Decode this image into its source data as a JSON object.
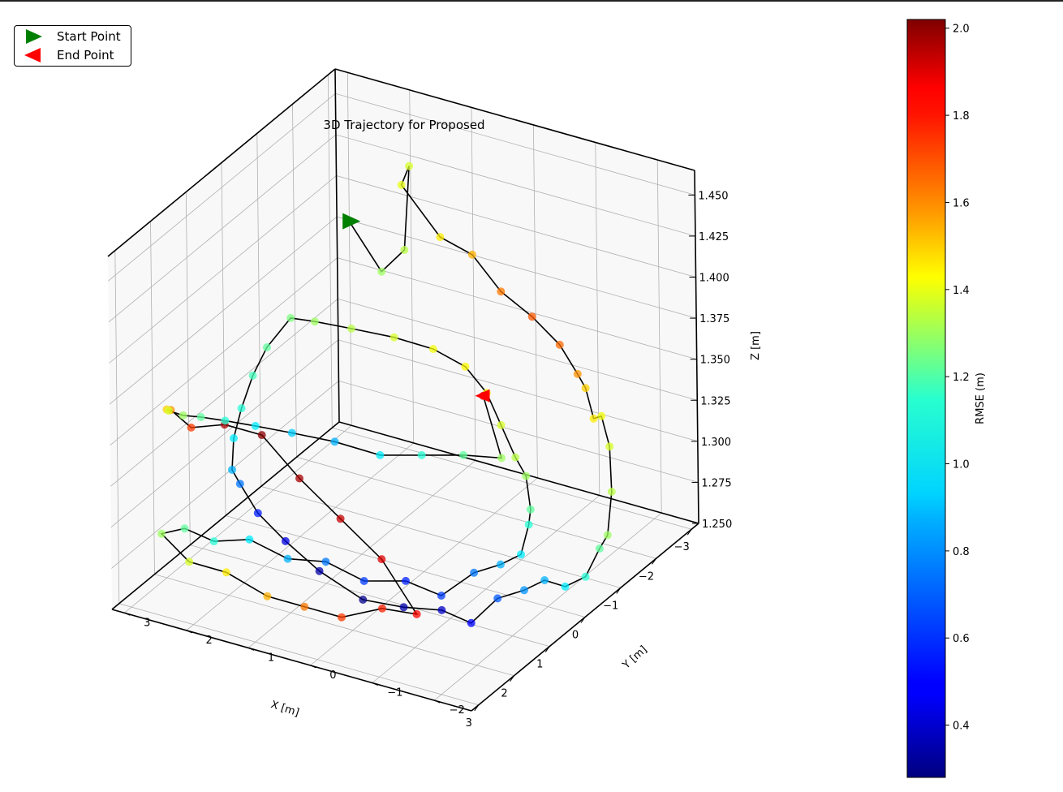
{
  "legend": {
    "start_label": "Start Point",
    "end_label": "End Point",
    "start_color": "#008000",
    "end_color": "#ff0000"
  },
  "chart_data": {
    "type": "scatter3d",
    "title": "3D Trajectory for Proposed",
    "xlabel": "X [m]",
    "ylabel": "Y [m]",
    "zlabel": "Z [m]",
    "xlim": [
      -3.2,
      3.2
    ],
    "ylim": [
      -2.6,
      3.2
    ],
    "zlim": [
      1.25,
      1.465
    ],
    "x_ticks": [
      -3,
      -2,
      -1,
      0,
      1,
      2,
      3
    ],
    "y_ticks": [
      -2,
      -1,
      0,
      1,
      2,
      3
    ],
    "z_ticks": [
      1.25,
      1.275,
      1.3,
      1.325,
      1.35,
      1.375,
      1.4,
      1.425,
      1.45
    ],
    "x_tick_labels": [
      "−3",
      "−2",
      "−1",
      "0",
      "1",
      "2",
      "3"
    ],
    "y_tick_labels": [
      "−2",
      "−1",
      "0",
      "1",
      "2",
      "3"
    ],
    "z_tick_labels": [
      "1.250",
      "1.275",
      "1.300",
      "1.325",
      "1.350",
      "1.375",
      "1.400",
      "1.425",
      "1.450"
    ],
    "grid": true,
    "legend_position": "top-left",
    "colorbar": {
      "label": "RMSE (m)",
      "colormap": "jet",
      "range": [
        0.28,
        2.02
      ],
      "ticks": [
        0.4,
        0.6,
        0.8,
        1.0,
        1.2,
        1.4,
        1.6,
        1.8,
        2.0
      ],
      "tick_labels": [
        "0.4",
        "0.6",
        "0.8",
        "1.0",
        "1.2",
        "1.4",
        "1.6",
        "1.8",
        "2.0"
      ]
    },
    "trajectory": {
      "line_color": "#000000",
      "start": {
        "x": -1.3,
        "y": 1.9,
        "z": 1.42
      },
      "end": {
        "x": -2.4,
        "y": 0.4,
        "z": 1.31
      },
      "waypoints": [
        {
          "x": -1.3,
          "y": 1.9,
          "z": 1.42,
          "rmse": 1.15
        },
        {
          "x": -1.5,
          "y": 1.5,
          "z": 1.39,
          "rmse": 1.2
        },
        {
          "x": -1.8,
          "y": 1.3,
          "z": 1.4,
          "rmse": 1.25
        },
        {
          "x": -2.3,
          "y": 1.5,
          "z": 1.44,
          "rmse": 1.3
        },
        {
          "x": -2.6,
          "y": 1.8,
          "z": 1.42,
          "rmse": 1.33
        },
        {
          "x": -2.8,
          "y": 1.3,
          "z": 1.39,
          "rmse": 1.4
        },
        {
          "x": -3.0,
          "y": 0.9,
          "z": 1.38,
          "rmse": 1.5
        },
        {
          "x": -3.1,
          "y": 0.5,
          "z": 1.36,
          "rmse": 1.6
        },
        {
          "x": -3.1,
          "y": 0.0,
          "z": 1.35,
          "rmse": 1.65
        },
        {
          "x": -3.0,
          "y": -0.5,
          "z": 1.34,
          "rmse": 1.62
        },
        {
          "x": -2.8,
          "y": -0.9,
          "z": 1.33,
          "rmse": 1.55
        },
        {
          "x": -2.5,
          "y": -1.2,
          "z": 1.33,
          "rmse": 1.45
        },
        {
          "x": -2.2,
          "y": -1.5,
          "z": 1.32,
          "rmse": 1.4
        },
        {
          "x": -1.9,
          "y": -1.8,
          "z": 1.33,
          "rmse": 1.35
        },
        {
          "x": -1.6,
          "y": -2.1,
          "z": 1.32,
          "rmse": 1.3
        },
        {
          "x": -1.3,
          "y": -2.3,
          "z": 1.3,
          "rmse": 1.25
        },
        {
          "x": -1.0,
          "y": -2.4,
          "z": 1.28,
          "rmse": 1.2
        },
        {
          "x": -0.6,
          "y": -2.5,
          "z": 1.28,
          "rmse": 1.1
        },
        {
          "x": -0.2,
          "y": -2.5,
          "z": 1.27,
          "rmse": 1.0
        },
        {
          "x": 0.2,
          "y": -2.4,
          "z": 1.27,
          "rmse": 0.9
        },
        {
          "x": 0.6,
          "y": -2.3,
          "z": 1.28,
          "rmse": 0.8
        },
        {
          "x": 1.0,
          "y": -2.2,
          "z": 1.28,
          "rmse": 0.75
        },
        {
          "x": 1.4,
          "y": -2.0,
          "z": 1.28,
          "rmse": 0.65
        },
        {
          "x": 1.8,
          "y": -1.8,
          "z": 1.27,
          "rmse": 0.5
        },
        {
          "x": 2.1,
          "y": -1.5,
          "z": 1.28,
          "rmse": 0.4
        },
        {
          "x": 2.3,
          "y": -1.0,
          "z": 1.28,
          "rmse": 0.35
        },
        {
          "x": 2.4,
          "y": -0.4,
          "z": 1.28,
          "rmse": 0.3
        },
        {
          "x": 2.4,
          "y": 0.3,
          "z": 1.29,
          "rmse": 0.35
        },
        {
          "x": 2.3,
          "y": 0.9,
          "z": 1.3,
          "rmse": 0.45
        },
        {
          "x": 2.2,
          "y": 1.4,
          "z": 1.31,
          "rmse": 0.55
        },
        {
          "x": 2.0,
          "y": 1.8,
          "z": 1.32,
          "rmse": 0.7
        },
        {
          "x": 1.7,
          "y": 2.1,
          "z": 1.32,
          "rmse": 0.8
        },
        {
          "x": 1.3,
          "y": 2.3,
          "z": 1.33,
          "rmse": 0.9
        },
        {
          "x": 0.9,
          "y": 2.4,
          "z": 1.34,
          "rmse": 1.0
        },
        {
          "x": 0.4,
          "y": 2.5,
          "z": 1.35,
          "rmse": 1.05
        },
        {
          "x": 0.0,
          "y": 2.5,
          "z": 1.36,
          "rmse": 1.1
        },
        {
          "x": -0.5,
          "y": 2.4,
          "z": 1.37,
          "rmse": 1.15
        },
        {
          "x": -1.0,
          "y": 2.3,
          "z": 1.36,
          "rmse": 1.2
        },
        {
          "x": -1.5,
          "y": 2.0,
          "z": 1.35,
          "rmse": 1.25
        },
        {
          "x": -2.0,
          "y": 1.6,
          "z": 1.34,
          "rmse": 1.3
        },
        {
          "x": -2.4,
          "y": 1.2,
          "z": 1.33,
          "rmse": 1.35
        },
        {
          "x": -2.6,
          "y": 0.8,
          "z": 1.32,
          "rmse": 1.38
        },
        {
          "x": -2.5,
          "y": 0.4,
          "z": 1.31,
          "rmse": 1.4
        },
        {
          "x": -2.2,
          "y": 0.0,
          "z": 1.3,
          "rmse": 1.3
        },
        {
          "x": -1.9,
          "y": -0.4,
          "z": 1.29,
          "rmse": 1.25
        },
        {
          "x": -1.5,
          "y": -0.8,
          "z": 1.29,
          "rmse": 1.2
        },
        {
          "x": -1.1,
          "y": -1.1,
          "z": 1.28,
          "rmse": 1.1
        },
        {
          "x": -0.7,
          "y": -1.3,
          "z": 1.28,
          "rmse": 1.0
        },
        {
          "x": -0.3,
          "y": -1.4,
          "z": 1.27,
          "rmse": 0.9
        },
        {
          "x": 0.1,
          "y": -1.3,
          "z": 1.27,
          "rmse": 0.8
        },
        {
          "x": 0.5,
          "y": -1.1,
          "z": 1.27,
          "rmse": 0.7
        },
        {
          "x": 0.9,
          "y": -0.8,
          "z": 1.26,
          "rmse": 0.6
        },
        {
          "x": 1.2,
          "y": -0.4,
          "z": 1.27,
          "rmse": 0.55
        },
        {
          "x": 1.5,
          "y": 0.1,
          "z": 1.27,
          "rmse": 0.6
        },
        {
          "x": 1.7,
          "y": 0.6,
          "z": 1.28,
          "rmse": 0.7
        },
        {
          "x": 1.9,
          "y": 1.1,
          "z": 1.28,
          "rmse": 0.8
        },
        {
          "x": 2.1,
          "y": 1.6,
          "z": 1.29,
          "rmse": 0.9
        },
        {
          "x": 2.4,
          "y": 2.0,
          "z": 1.29,
          "rmse": 1.0
        },
        {
          "x": 2.7,
          "y": 2.3,
          "z": 1.3,
          "rmse": 1.1
        },
        {
          "x": 3.0,
          "y": 2.5,
          "z": 1.3,
          "rmse": 1.2
        },
        {
          "x": 3.1,
          "y": 2.0,
          "z": 1.29,
          "rmse": 1.3
        },
        {
          "x": 3.1,
          "y": 1.4,
          "z": 1.29,
          "rmse": 1.4
        },
        {
          "x": 3.0,
          "y": 0.8,
          "z": 1.28,
          "rmse": 1.5
        },
        {
          "x": 3.0,
          "y": 0.2,
          "z": 1.28,
          "rmse": 1.6
        },
        {
          "x": 3.0,
          "y": -0.4,
          "z": 1.28,
          "rmse": 1.7
        },
        {
          "x": 2.9,
          "y": -1.0,
          "z": 1.29,
          "rmse": 1.75
        },
        {
          "x": 2.8,
          "y": -1.5,
          "z": 1.29,
          "rmse": 1.8
        },
        {
          "x": 2.9,
          "y": -1.0,
          "z": 1.32,
          "rmse": 1.85
        },
        {
          "x": 3.0,
          "y": -0.4,
          "z": 1.34,
          "rmse": 1.9
        },
        {
          "x": 3.1,
          "y": 0.2,
          "z": 1.36,
          "rmse": 1.95
        },
        {
          "x": 3.1,
          "y": 0.8,
          "z": 1.38,
          "rmse": 2.0
        },
        {
          "x": 3.1,
          "y": 1.4,
          "z": 1.38,
          "rmse": 1.95
        },
        {
          "x": 3.0,
          "y": 2.0,
          "z": 1.37,
          "rmse": 1.7
        },
        {
          "x": 2.7,
          "y": 2.5,
          "z": 1.37,
          "rmse": 1.55
        },
        {
          "x": 2.3,
          "y": 2.8,
          "z": 1.36,
          "rmse": 1.45
        },
        {
          "x": 1.9,
          "y": 3.0,
          "z": 1.35,
          "rmse": 1.3
        },
        {
          "x": 1.5,
          "y": 3.0,
          "z": 1.34,
          "rmse": 1.2
        },
        {
          "x": 1.0,
          "y": 3.0,
          "z": 1.33,
          "rmse": 1.1
        },
        {
          "x": 0.5,
          "y": 2.9,
          "z": 1.32,
          "rmse": 1.0
        },
        {
          "x": 0.0,
          "y": 2.7,
          "z": 1.31,
          "rmse": 0.9
        },
        {
          "x": -0.5,
          "y": 2.4,
          "z": 1.3,
          "rmse": 0.85
        },
        {
          "x": -1.0,
          "y": 2.0,
          "z": 1.29,
          "rmse": 0.8
        },
        {
          "x": -1.4,
          "y": 1.5,
          "z": 1.28,
          "rmse": 0.9
        },
        {
          "x": -1.7,
          "y": 1.0,
          "z": 1.28,
          "rmse": 1.0
        },
        {
          "x": -2.0,
          "y": 0.5,
          "z": 1.28,
          "rmse": 1.1
        },
        {
          "x": -2.2,
          "y": 0.0,
          "z": 1.28,
          "rmse": 1.2
        },
        {
          "x": -2.4,
          "y": 0.4,
          "z": 1.31,
          "rmse": 1.85
        }
      ]
    }
  }
}
